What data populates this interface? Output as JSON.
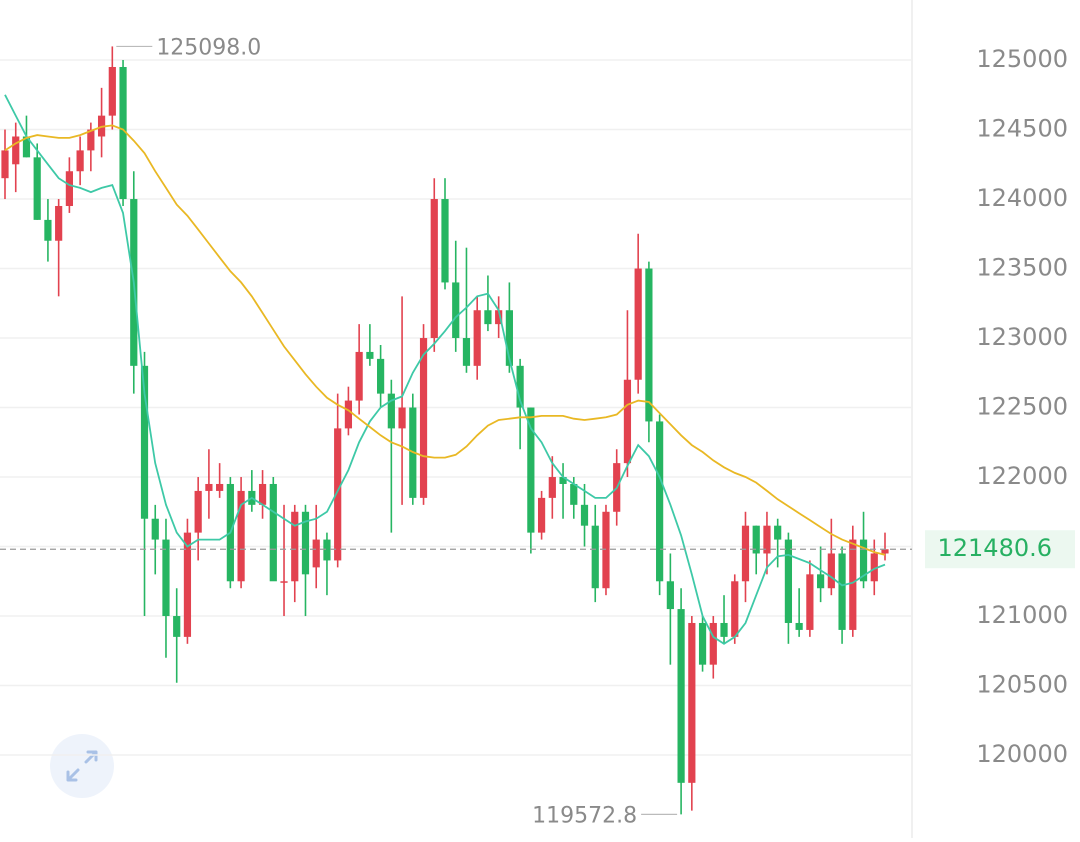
{
  "chart_data": {
    "type": "candlestick",
    "up_color": "#e2424f",
    "down_color": "#26b562",
    "ylim": [
      119403,
      125432
    ],
    "yticks": [
      120000,
      120500,
      121000,
      121500,
      122000,
      122500,
      123000,
      123500,
      124000,
      124500,
      125000
    ],
    "grid": true,
    "open": [
      124150,
      124250,
      124450,
      124300,
      123850,
      123700,
      123950,
      124200,
      124350,
      124450,
      124600,
      124950,
      124000,
      122800,
      121700,
      121550,
      121000,
      120850,
      121600,
      121900,
      121900,
      121950,
      121250,
      121900,
      121800,
      121950,
      121250,
      121250,
      121750,
      121350,
      121550,
      121400,
      122350,
      122550,
      122900,
      122850,
      122600,
      122350,
      122500,
      121850,
      123000,
      124000,
      123400,
      123000,
      122800,
      123200,
      123100,
      123200,
      122800,
      122500,
      121600,
      121850,
      122000,
      121950,
      121800,
      121650,
      121200,
      121750,
      122100,
      122700,
      123500,
      122400,
      121250,
      121050,
      119800,
      120950,
      120650,
      120950,
      120850,
      121250,
      121650,
      121450,
      121650,
      121550,
      120950,
      120900,
      121300,
      121200,
      121450,
      120900,
      121550,
      121250,
      121450
    ],
    "high": [
      124500,
      124550,
      124600,
      124400,
      124000,
      124000,
      124300,
      124450,
      124550,
      124800,
      125098,
      125000,
      124200,
      122900,
      121800,
      121700,
      121200,
      121700,
      122000,
      122200,
      122100,
      122000,
      122000,
      122050,
      122050,
      122000,
      121800,
      121800,
      121800,
      121800,
      121600,
      122600,
      122650,
      123100,
      123100,
      122950,
      122700,
      123300,
      122600,
      123100,
      124150,
      124150,
      123700,
      123650,
      123300,
      123450,
      123300,
      123400,
      122850,
      122500,
      121900,
      122150,
      122100,
      122000,
      121950,
      121800,
      121800,
      122200,
      123200,
      123750,
      123550,
      122450,
      121450,
      121200,
      121000,
      121000,
      121000,
      121150,
      121300,
      121750,
      121650,
      121750,
      121700,
      121600,
      121200,
      121400,
      121500,
      121700,
      121500,
      121650,
      121750,
      121550,
      121600
    ],
    "low": [
      124000,
      124050,
      124300,
      123850,
      123550,
      123300,
      123900,
      124100,
      124200,
      124300,
      124500,
      123950,
      122600,
      121000,
      121300,
      120700,
      120520,
      120800,
      121400,
      121700,
      121850,
      121200,
      121200,
      121750,
      121700,
      121300,
      121000,
      121100,
      121000,
      121200,
      121150,
      121350,
      122300,
      122450,
      122800,
      122500,
      121600,
      121800,
      121800,
      121800,
      122900,
      123350,
      122900,
      122750,
      122700,
      123050,
      123000,
      122750,
      122200,
      121450,
      121550,
      121700,
      121700,
      121700,
      121500,
      121100,
      121150,
      121650,
      122000,
      122600,
      122250,
      121150,
      120650,
      119572.8,
      119600,
      120600,
      120550,
      120800,
      120800,
      121100,
      121300,
      121300,
      121350,
      120800,
      120850,
      120850,
      121100,
      121150,
      120800,
      120850,
      121200,
      121150,
      121400
    ],
    "close": [
      124350,
      124450,
      124300,
      123850,
      123700,
      123950,
      124200,
      124350,
      124500,
      124600,
      124950,
      124000,
      122800,
      121700,
      121550,
      121000,
      120850,
      121600,
      121900,
      121950,
      121950,
      121250,
      121900,
      121800,
      121950,
      121250,
      121250,
      121750,
      121300,
      121550,
      121400,
      122350,
      122550,
      122900,
      122850,
      122600,
      122350,
      122500,
      121850,
      123000,
      124000,
      123400,
      123000,
      122800,
      123200,
      123100,
      123200,
      122800,
      122500,
      121600,
      121850,
      122000,
      121950,
      121800,
      121650,
      121200,
      121750,
      122100,
      122700,
      123500,
      122400,
      121250,
      121050,
      119800,
      120950,
      120650,
      120950,
      120850,
      121250,
      121650,
      121450,
      121650,
      121550,
      120950,
      120900,
      121300,
      121200,
      121450,
      120900,
      121550,
      121250,
      121450,
      121480.6
    ],
    "lines": [
      {
        "color": "#3ec9a7",
        "values": [
          124750,
          124600,
          124450,
          124350,
          124250,
          124150,
          124100,
          124080,
          124050,
          124080,
          124100,
          123900,
          123400,
          122600,
          122100,
          121800,
          121600,
          121500,
          121550,
          121550,
          121550,
          121600,
          121800,
          121850,
          121800,
          121750,
          121700,
          121650,
          121680,
          121700,
          121750,
          121900,
          122050,
          122250,
          122400,
          122500,
          122550,
          122580,
          122750,
          122880,
          122960,
          123050,
          123150,
          123220,
          123300,
          123320,
          123200,
          122850,
          122550,
          122350,
          122250,
          122100,
          122000,
          121950,
          121900,
          121850,
          121850,
          121920,
          122080,
          122230,
          122150,
          122000,
          121800,
          121580,
          121300,
          121000,
          120850,
          120800,
          120850,
          120950,
          121150,
          121350,
          121430,
          121440,
          121410,
          121380,
          121330,
          121280,
          121220,
          121240,
          121290,
          121340,
          121370
        ]
      },
      {
        "color": "#e9b824",
        "values": [
          124350,
          124400,
          124440,
          124460,
          124450,
          124440,
          124440,
          124460,
          124490,
          124520,
          124530,
          124500,
          124420,
          124330,
          124200,
          124080,
          123960,
          123880,
          123780,
          123680,
          123580,
          123480,
          123400,
          123300,
          123180,
          123060,
          122940,
          122840,
          122740,
          122650,
          122570,
          122520,
          122480,
          122420,
          122360,
          122300,
          122250,
          122220,
          122180,
          122150,
          122140,
          122140,
          122160,
          122220,
          122300,
          122370,
          122410,
          122420,
          122430,
          122430,
          122440,
          122440,
          122440,
          122420,
          122410,
          122420,
          122430,
          122450,
          122520,
          122550,
          122540,
          122460,
          122380,
          122300,
          122230,
          122180,
          122120,
          122070,
          122030,
          122000,
          121960,
          121900,
          121840,
          121790,
          121740,
          121690,
          121640,
          121590,
          121550,
          121520,
          121490,
          121460,
          121440
        ]
      }
    ],
    "annotations": [
      {
        "value": 125098,
        "label": "125098.0"
      },
      {
        "value": 119572.8,
        "label": "119572.8"
      }
    ],
    "last_price": {
      "value": 121480.6,
      "label": "121480.6"
    }
  }
}
